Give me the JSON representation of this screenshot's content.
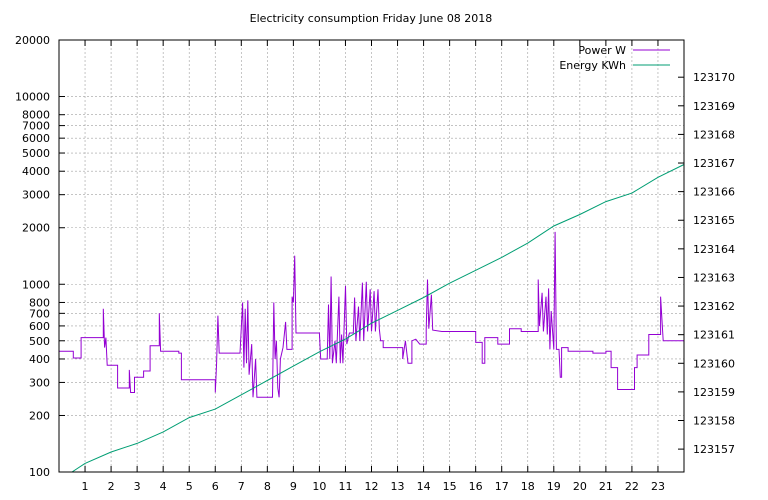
{
  "chart_data": {
    "type": "line",
    "title": "Electricity consumption Friday June 08 2018",
    "x_range": [
      0,
      24
    ],
    "x_ticks": [
      1,
      2,
      3,
      4,
      5,
      6,
      7,
      8,
      9,
      10,
      11,
      12,
      13,
      14,
      15,
      16,
      17,
      18,
      19,
      20,
      21,
      22,
      23
    ],
    "y_left": {
      "scale": "log",
      "range": [
        100,
        20000
      ],
      "ticks": [
        100,
        200,
        300,
        400,
        500,
        600,
        700,
        800,
        1000,
        2000,
        3000,
        4000,
        5000,
        6000,
        7000,
        8000,
        10000,
        20000
      ]
    },
    "y_right": {
      "range": [
        123156.2,
        123171.3
      ],
      "ticks": [
        123157,
        123158,
        123159,
        123160,
        123161,
        123162,
        123163,
        123164,
        123165,
        123166,
        123167,
        123168,
        123169,
        123170
      ]
    },
    "grid": true,
    "legend_position": "top-right",
    "series": [
      {
        "name": "Power W",
        "axis": "left",
        "color": "#9400d3",
        "points": [
          [
            0.0,
            440
          ],
          [
            0.55,
            440
          ],
          [
            0.55,
            405
          ],
          [
            0.85,
            405
          ],
          [
            0.85,
            520
          ],
          [
            1.7,
            520
          ],
          [
            1.7,
            740
          ],
          [
            1.75,
            460
          ],
          [
            1.8,
            520
          ],
          [
            1.85,
            370
          ],
          [
            2.25,
            370
          ],
          [
            2.25,
            280
          ],
          [
            2.7,
            280
          ],
          [
            2.7,
            350
          ],
          [
            2.75,
            265
          ],
          [
            2.9,
            265
          ],
          [
            2.9,
            320
          ],
          [
            3.25,
            320
          ],
          [
            3.25,
            345
          ],
          [
            3.5,
            345
          ],
          [
            3.5,
            470
          ],
          [
            3.85,
            470
          ],
          [
            3.85,
            700
          ],
          [
            3.9,
            440
          ],
          [
            4.6,
            440
          ],
          [
            4.6,
            430
          ],
          [
            4.7,
            430
          ],
          [
            4.7,
            310
          ],
          [
            6.0,
            310
          ],
          [
            6.0,
            265
          ],
          [
            6.05,
            380
          ],
          [
            6.1,
            680
          ],
          [
            6.15,
            430
          ],
          [
            6.95,
            430
          ],
          [
            6.95,
            430
          ],
          [
            7.05,
            800
          ],
          [
            7.1,
            360
          ],
          [
            7.15,
            740
          ],
          [
            7.2,
            380
          ],
          [
            7.25,
            820
          ],
          [
            7.3,
            330
          ],
          [
            7.4,
            480
          ],
          [
            7.45,
            250
          ],
          [
            7.55,
            400
          ],
          [
            7.6,
            250
          ],
          [
            8.2,
            250
          ],
          [
            8.25,
            800
          ],
          [
            8.3,
            400
          ],
          [
            8.35,
            500
          ],
          [
            8.4,
            280
          ],
          [
            8.45,
            250
          ],
          [
            8.5,
            400
          ],
          [
            8.6,
            460
          ],
          [
            8.7,
            630
          ],
          [
            8.75,
            450
          ],
          [
            8.95,
            450
          ],
          [
            8.95,
            860
          ],
          [
            9.0,
            800
          ],
          [
            9.05,
            1420
          ],
          [
            9.1,
            550
          ],
          [
            10.0,
            550
          ],
          [
            10.05,
            400
          ],
          [
            10.3,
            400
          ],
          [
            10.35,
            780
          ],
          [
            10.4,
            400
          ],
          [
            10.45,
            1100
          ],
          [
            10.5,
            380
          ],
          [
            10.6,
            500
          ],
          [
            10.65,
            380
          ],
          [
            10.75,
            860
          ],
          [
            10.8,
            380
          ],
          [
            10.85,
            540
          ],
          [
            10.9,
            380
          ],
          [
            11.0,
            980
          ],
          [
            11.05,
            480
          ],
          [
            11.15,
            550
          ],
          [
            11.3,
            550
          ],
          [
            11.35,
            850
          ],
          [
            11.4,
            500
          ],
          [
            11.5,
            760
          ],
          [
            11.55,
            500
          ],
          [
            11.65,
            1020
          ],
          [
            11.7,
            500
          ],
          [
            11.8,
            1030
          ],
          [
            11.85,
            560
          ],
          [
            11.95,
            940
          ],
          [
            12.0,
            560
          ],
          [
            12.1,
            920
          ],
          [
            12.15,
            560
          ],
          [
            12.25,
            940
          ],
          [
            12.3,
            580
          ],
          [
            12.35,
            500
          ],
          [
            12.45,
            500
          ],
          [
            12.45,
            460
          ],
          [
            13.2,
            460
          ],
          [
            13.2,
            400
          ],
          [
            13.3,
            500
          ],
          [
            13.4,
            380
          ],
          [
            13.55,
            380
          ],
          [
            13.55,
            500
          ],
          [
            13.7,
            510
          ],
          [
            13.85,
            480
          ],
          [
            14.1,
            480
          ],
          [
            14.1,
            570
          ],
          [
            14.15,
            1060
          ],
          [
            14.2,
            580
          ],
          [
            14.3,
            880
          ],
          [
            14.35,
            570
          ],
          [
            14.7,
            560
          ],
          [
            16.0,
            560
          ],
          [
            16.0,
            490
          ],
          [
            16.25,
            490
          ],
          [
            16.25,
            380
          ],
          [
            16.35,
            380
          ],
          [
            16.35,
            520
          ],
          [
            16.85,
            520
          ],
          [
            16.85,
            480
          ],
          [
            17.3,
            480
          ],
          [
            17.3,
            580
          ],
          [
            17.75,
            580
          ],
          [
            17.75,
            560
          ],
          [
            18.4,
            560
          ],
          [
            18.4,
            1060
          ],
          [
            18.45,
            600
          ],
          [
            18.55,
            900
          ],
          [
            18.6,
            560
          ],
          [
            18.7,
            860
          ],
          [
            18.75,
            540
          ],
          [
            18.8,
            950
          ],
          [
            18.85,
            450
          ],
          [
            18.9,
            720
          ],
          [
            19.0,
            450
          ],
          [
            19.05,
            1900
          ],
          [
            19.1,
            450
          ],
          [
            19.2,
            450
          ],
          [
            19.25,
            320
          ],
          [
            19.3,
            320
          ],
          [
            19.3,
            460
          ],
          [
            19.55,
            460
          ],
          [
            19.55,
            440
          ],
          [
            20.5,
            440
          ],
          [
            20.5,
            430
          ],
          [
            21.0,
            430
          ],
          [
            21.0,
            440
          ],
          [
            21.2,
            440
          ],
          [
            21.2,
            360
          ],
          [
            21.45,
            360
          ],
          [
            21.45,
            275
          ],
          [
            22.1,
            275
          ],
          [
            22.1,
            360
          ],
          [
            22.2,
            360
          ],
          [
            22.2,
            420
          ],
          [
            22.65,
            420
          ],
          [
            22.65,
            540
          ],
          [
            23.1,
            540
          ],
          [
            23.1,
            860
          ],
          [
            23.2,
            500
          ],
          [
            24.0,
            500
          ]
        ]
      },
      {
        "name": "Energy KWh",
        "axis": "right",
        "color": "#009e73",
        "points": [
          [
            0.5,
            123156.2
          ],
          [
            1.0,
            123156.5
          ],
          [
            2.0,
            123156.9
          ],
          [
            3.0,
            123157.2
          ],
          [
            4.0,
            123157.6
          ],
          [
            5.0,
            123158.1
          ],
          [
            6.0,
            123158.4
          ],
          [
            7.0,
            123158.9
          ],
          [
            8.0,
            123159.4
          ],
          [
            9.0,
            123159.9
          ],
          [
            10.0,
            123160.4
          ],
          [
            11.0,
            123160.85
          ],
          [
            12.0,
            123161.4
          ],
          [
            13.0,
            123161.85
          ],
          [
            14.0,
            123162.3
          ],
          [
            15.0,
            123162.8
          ],
          [
            16.0,
            123163.25
          ],
          [
            17.0,
            123163.7
          ],
          [
            18.0,
            123164.2
          ],
          [
            19.0,
            123164.8
          ],
          [
            20.0,
            123165.2
          ],
          [
            21.0,
            123165.65
          ],
          [
            22.0,
            123165.95
          ],
          [
            23.0,
            123166.5
          ],
          [
            24.0,
            123166.95
          ]
        ]
      }
    ]
  }
}
